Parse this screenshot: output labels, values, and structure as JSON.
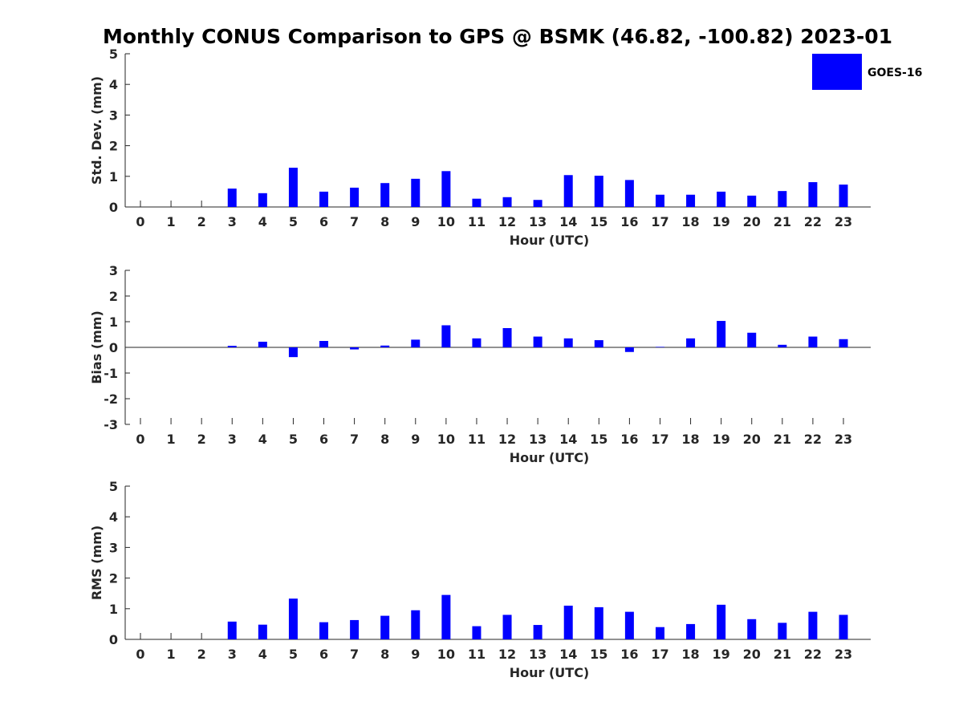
{
  "chart_data": {
    "title": "Monthly CONUS Comparison to GPS @ BSMK (46.82, -100.82) 2023-01",
    "type": "bar",
    "legend": {
      "label": "GOES-16",
      "placement": "top-right"
    },
    "series_color": "#0000ff",
    "hours": [
      0,
      1,
      2,
      3,
      4,
      5,
      6,
      7,
      8,
      9,
      10,
      11,
      12,
      13,
      14,
      15,
      16,
      17,
      18,
      19,
      20,
      21,
      22,
      23
    ],
    "panels": [
      {
        "id": "stddev",
        "type": "bar",
        "xlabel": "Hour (UTC)",
        "ylabel": "Std. Dev. (mm)",
        "ylim": [
          0,
          5
        ],
        "yticks": [
          0,
          1,
          2,
          3,
          4,
          5
        ],
        "series": [
          {
            "name": "GOES-16",
            "values": [
              null,
              null,
              null,
              0.6,
              0.45,
              1.28,
              0.5,
              0.63,
              0.78,
              0.92,
              1.17,
              0.27,
              0.32,
              0.23,
              1.04,
              1.02,
              0.88,
              0.4,
              0.4,
              0.5,
              0.37,
              0.52,
              0.81,
              0.73
            ]
          }
        ]
      },
      {
        "id": "bias",
        "type": "bar",
        "xlabel": "Hour (UTC)",
        "ylabel": "Bias (mm)",
        "ylim": [
          -3,
          3
        ],
        "yticks": [
          -3,
          -2,
          -1,
          0,
          1,
          2,
          3
        ],
        "series": [
          {
            "name": "GOES-16",
            "values": [
              null,
              null,
              null,
              0.06,
              0.22,
              -0.38,
              0.25,
              -0.08,
              0.07,
              0.3,
              0.86,
              0.35,
              0.75,
              0.42,
              0.35,
              0.28,
              -0.18,
              0.02,
              0.35,
              1.03,
              0.57,
              0.1,
              0.42,
              0.32
            ]
          }
        ]
      },
      {
        "id": "rms",
        "type": "bar",
        "xlabel": "Hour (UTC)",
        "ylabel": "RMS (mm)",
        "ylim": [
          0,
          5
        ],
        "yticks": [
          0,
          1,
          2,
          3,
          4,
          5
        ],
        "series": [
          {
            "name": "GOES-16",
            "values": [
              null,
              null,
              null,
              0.58,
              0.48,
              1.33,
              0.56,
              0.63,
              0.77,
              0.95,
              1.45,
              0.43,
              0.8,
              0.47,
              1.1,
              1.05,
              0.9,
              0.4,
              0.5,
              1.13,
              0.66,
              0.54,
              0.9,
              0.8
            ]
          }
        ]
      }
    ]
  }
}
